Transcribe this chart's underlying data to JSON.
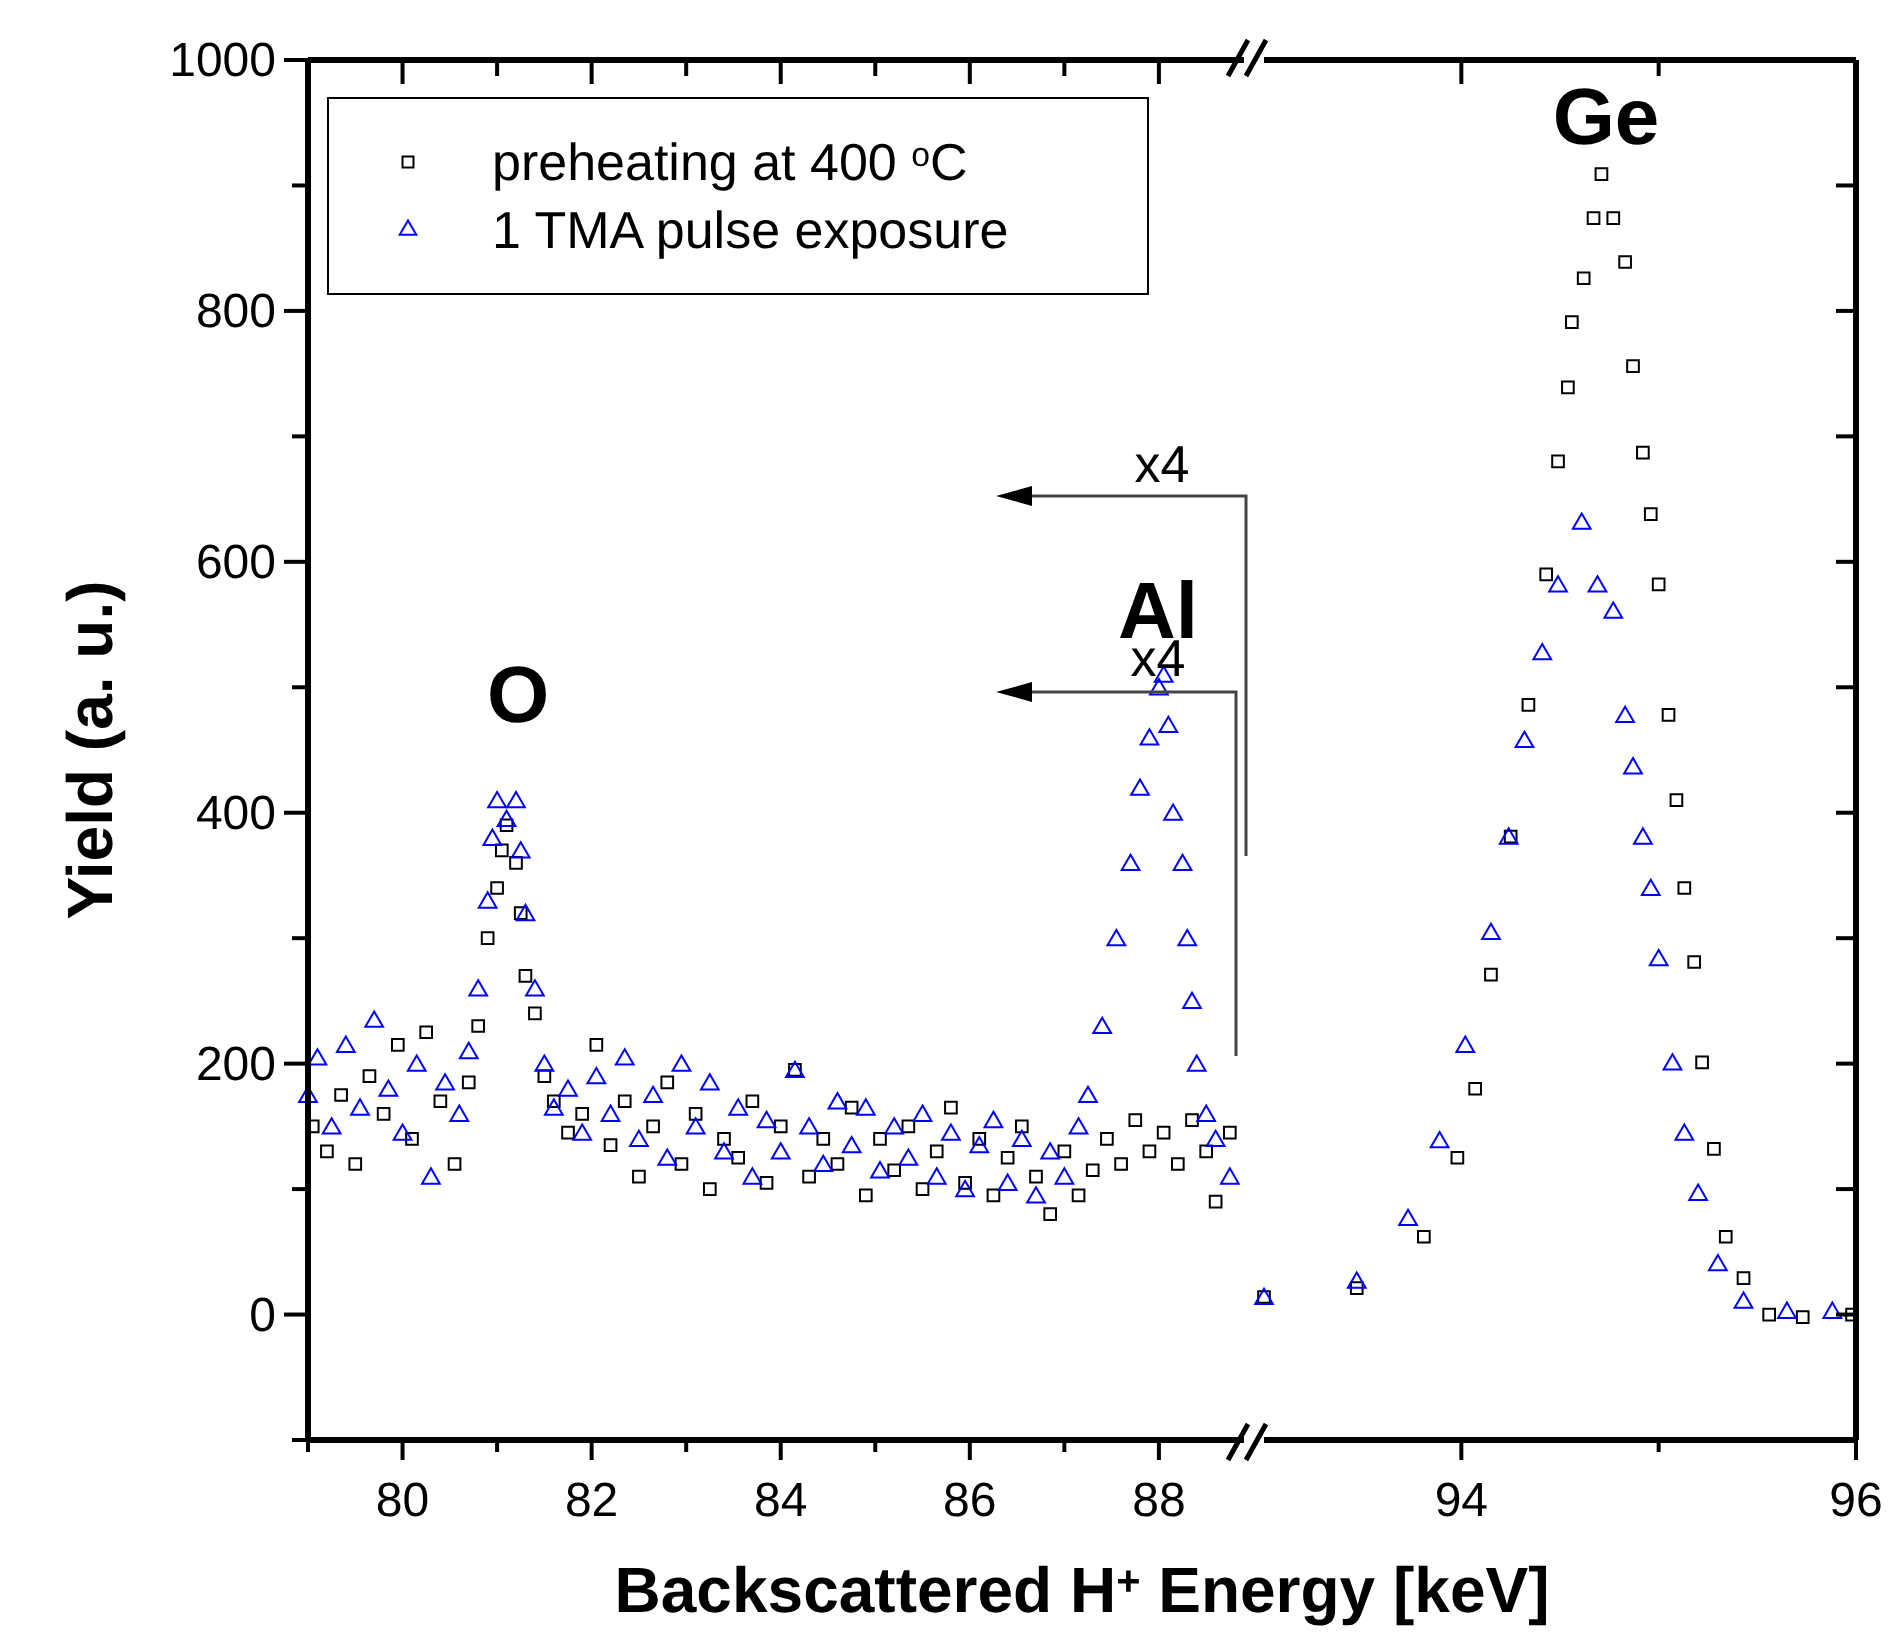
{
  "chart_data": [
    {
      "type": "scatter",
      "xlabel": "Backscattered H$^{+}$ Energy [keV]",
      "ylabel": "Yield (a. u.)",
      "legend": "top left",
      "xlim": [
        79,
        88.9
      ],
      "xticks": [
        {
          "value": 79,
          "label": null
        },
        80,
        {
          "value": 81,
          "label": null
        },
        82,
        {
          "value": 83,
          "label": null
        },
        84,
        {
          "value": 85,
          "label": null
        },
        86,
        {
          "value": 87,
          "label": null
        },
        88
      ],
      "ylim": [
        -100,
        1000
      ],
      "yticks": [
        {
          "value": -100,
          "label": null
        },
        0,
        {
          "value": 100,
          "label": null
        },
        200,
        {
          "value": 300,
          "label": null
        },
        400,
        {
          "value": 500,
          "label": null
        },
        600,
        {
          "value": 700,
          "label": null
        },
        800,
        {
          "value": 900,
          "label": null
        },
        1000
      ],
      "annotations": [
        "O",
        "Al",
        "x4",
        "x4"
      ],
      "series": [
        {
          "name": "preheating at 400 $^{o}$C",
          "color": "#000000",
          "marker": "square",
          "x": [
            79.05,
            79.2,
            79.35,
            79.5,
            79.65,
            79.8,
            79.95,
            80.1,
            80.25,
            80.4,
            80.55,
            80.7,
            80.8,
            80.9,
            81.0,
            81.05,
            81.1,
            81.2,
            81.25,
            81.3,
            81.4,
            81.5,
            81.6,
            81.75,
            81.9,
            82.05,
            82.2,
            82.35,
            82.5,
            82.65,
            82.8,
            82.95,
            83.1,
            83.25,
            83.4,
            83.55,
            83.7,
            83.85,
            84.0,
            84.15,
            84.3,
            84.45,
            84.6,
            84.75,
            84.9,
            85.05,
            85.2,
            85.35,
            85.5,
            85.65,
            85.8,
            85.95,
            86.1,
            86.25,
            86.4,
            86.55,
            86.7,
            86.85,
            87.0,
            87.15,
            87.3,
            87.45,
            87.6,
            87.75,
            87.9,
            88.05,
            88.2,
            88.35,
            88.5,
            88.6,
            88.75
          ],
          "values": [
            150,
            130,
            175,
            120,
            190,
            160,
            215,
            140,
            225,
            170,
            120,
            185,
            230,
            300,
            340,
            370,
            390,
            360,
            320,
            270,
            240,
            190,
            170,
            145,
            160,
            215,
            135,
            170,
            110,
            150,
            185,
            120,
            160,
            100,
            140,
            125,
            170,
            105,
            150,
            195,
            110,
            140,
            120,
            165,
            95,
            140,
            115,
            150,
            100,
            130,
            165,
            105,
            140,
            95,
            125,
            150,
            110,
            80,
            130,
            95,
            115,
            140,
            120,
            155,
            130,
            145,
            120,
            155,
            130,
            90,
            145
          ]
        },
        {
          "name": "1 TMA pulse exposure",
          "color": "#0000ff",
          "marker": "triangle",
          "x": [
            79.0,
            79.1,
            79.25,
            79.4,
            79.55,
            79.7,
            79.85,
            80.0,
            80.15,
            80.3,
            80.45,
            80.6,
            80.7,
            80.8,
            80.9,
            80.95,
            81.0,
            81.1,
            81.2,
            81.25,
            81.3,
            81.4,
            81.5,
            81.6,
            81.75,
            81.9,
            82.05,
            82.2,
            82.35,
            82.5,
            82.65,
            82.8,
            82.95,
            83.1,
            83.25,
            83.4,
            83.55,
            83.7,
            83.85,
            84.0,
            84.15,
            84.3,
            84.45,
            84.6,
            84.75,
            84.9,
            85.05,
            85.2,
            85.35,
            85.5,
            85.65,
            85.8,
            85.95,
            86.1,
            86.25,
            86.4,
            86.55,
            86.7,
            86.85,
            87.0,
            87.15,
            87.25,
            87.4,
            87.55,
            87.7,
            87.8,
            87.9,
            88.0,
            88.05,
            88.1,
            88.15,
            88.25,
            88.3,
            88.35,
            88.4,
            88.5,
            88.6,
            88.75
          ],
          "values": [
            175,
            205,
            150,
            215,
            165,
            235,
            180,
            145,
            200,
            110,
            185,
            160,
            210,
            260,
            330,
            380,
            410,
            395,
            410,
            370,
            320,
            260,
            200,
            165,
            180,
            145,
            190,
            160,
            205,
            140,
            175,
            125,
            200,
            150,
            185,
            130,
            165,
            110,
            155,
            130,
            195,
            150,
            120,
            170,
            135,
            165,
            115,
            150,
            125,
            160,
            110,
            145,
            100,
            135,
            155,
            105,
            140,
            95,
            130,
            110,
            150,
            175,
            230,
            300,
            360,
            420,
            460,
            500,
            510,
            470,
            400,
            360,
            300,
            250,
            200,
            160,
            140,
            110
          ]
        }
      ]
    },
    {
      "type": "scatter",
      "tick_labels": "x",
      "xlim": [
        93,
        96
      ],
      "xticks": [
        94,
        {
          "value": 95,
          "label": null
        },
        96
      ],
      "ylim": [
        -100,
        1000
      ],
      "yticks": [
        {
          "value": -100,
          "label": null
        },
        {
          "value": 0,
          "label": null
        },
        {
          "value": 100,
          "label": null
        },
        {
          "value": 200,
          "label": null
        },
        {
          "value": 300,
          "label": null
        },
        {
          "value": 400,
          "label": null
        },
        {
          "value": 500,
          "label": null
        },
        {
          "value": 600,
          "label": null
        },
        {
          "value": 700,
          "label": null
        },
        {
          "value": 800,
          "label": null
        },
        {
          "value": 900,
          "label": null
        },
        {
          "value": 1000,
          "label": null
        }
      ],
      "annotations": [
        "Ge"
      ],
      "series": [
        {
          "color": "#000000",
          "marker": "square",
          "x": [
            93.0,
            93.47,
            93.81,
            93.98,
            94.07,
            94.15,
            94.25,
            94.34,
            94.43,
            94.49,
            94.54,
            94.56,
            94.62,
            94.67,
            94.71,
            94.77,
            94.83,
            94.87,
            94.92,
            94.96,
            95.0,
            95.05,
            95.09,
            95.13,
            95.18,
            95.22,
            95.28,
            95.34,
            95.43,
            95.56,
            95.73,
            95.98
          ],
          "values": [
            14,
            21,
            62,
            125,
            180,
            271,
            381,
            486,
            590,
            680,
            739,
            791,
            826,
            874,
            909,
            874,
            839,
            756,
            687,
            638,
            582,
            478,
            410,
            340,
            281,
            201,
            132,
            62,
            29,
            0,
            -2,
            0
          ]
        },
        {
          "color": "#0000ff",
          "marker": "triangle",
          "x": [
            93.0,
            93.47,
            93.73,
            93.89,
            94.02,
            94.15,
            94.24,
            94.32,
            94.41,
            94.49,
            94.61,
            94.69,
            94.77,
            94.83,
            94.87,
            94.92,
            94.96,
            95.0,
            95.07,
            95.13,
            95.2,
            95.3,
            95.43,
            95.65,
            95.88
          ],
          "values": [
            14,
            27,
            77,
            139,
            215,
            305,
            381,
            458,
            528,
            582,
            632,
            582,
            561,
            478,
            437,
            381,
            340,
            284,
            201,
            145,
            97,
            41,
            11,
            3,
            3
          ]
        }
      ]
    }
  ]
}
